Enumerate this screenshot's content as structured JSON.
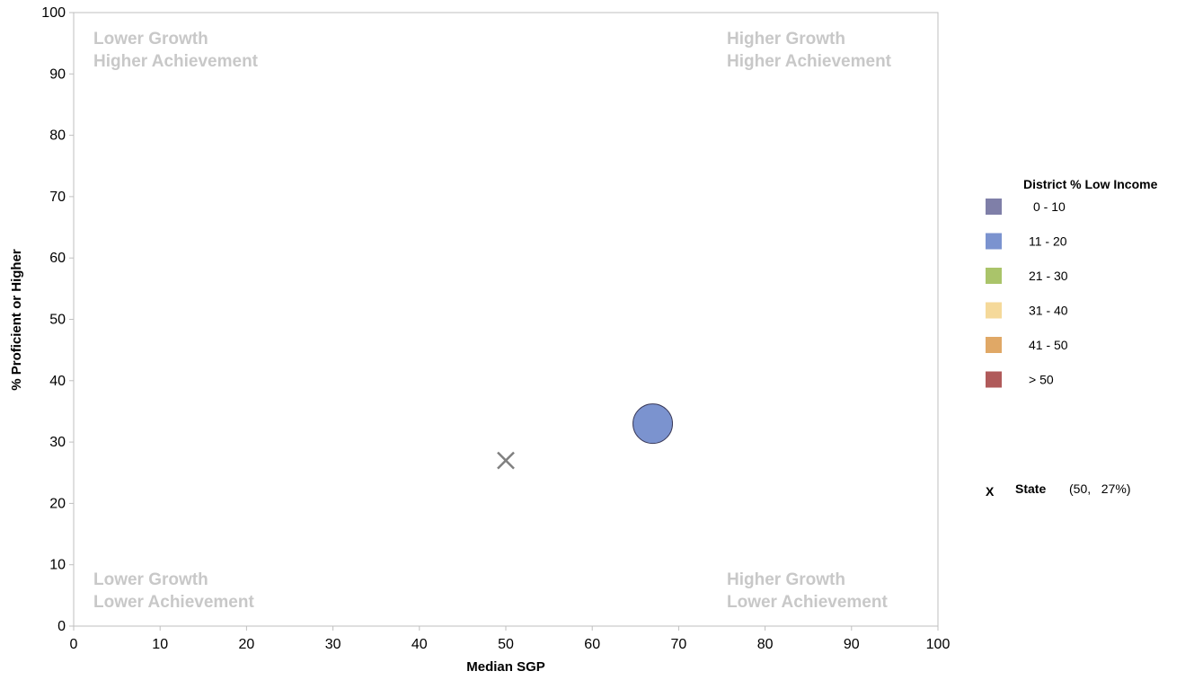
{
  "chart_data": {
    "type": "scatter",
    "title": "",
    "xlabel": "Median SGP",
    "ylabel": "% Proficient or Higher",
    "xlim": [
      0,
      100
    ],
    "ylim": [
      0,
      100
    ],
    "x_ticks": [
      "0",
      "10",
      "20",
      "30",
      "40",
      "50",
      "60",
      "70",
      "80",
      "90",
      "100"
    ],
    "y_ticks": [
      "0",
      "10",
      "20",
      "30",
      "40",
      "50",
      "60",
      "70",
      "80",
      "90",
      "100"
    ],
    "grid": false,
    "quadrant_labels": {
      "top_left": [
        "Lower Growth",
        "Higher Achievement"
      ],
      "top_right": [
        "Higher Growth",
        "Higher Achievement"
      ],
      "bottom_left": [
        "Lower Growth",
        "Lower Achievement"
      ],
      "bottom_right": [
        "Higher Growth",
        "Lower Achievement"
      ]
    },
    "legend": {
      "title": "District % Low Income",
      "placement": "right",
      "items": [
        {
          "label": "0 - 10",
          "color": "#7f7fa8"
        },
        {
          "label": "11 - 20",
          "color": "#7b93cf"
        },
        {
          "label": "21 - 30",
          "color": "#aac46a"
        },
        {
          "label": "31 - 40",
          "color": "#f5d99a"
        },
        {
          "label": "41 - 50",
          "color": "#e0a866"
        },
        {
          "label": "> 50",
          "color": "#b05a5a"
        }
      ]
    },
    "points": [
      {
        "x": 67,
        "y": 33,
        "category": "11 - 20",
        "color": "#7b93cf"
      }
    ],
    "state_marker": {
      "symbol": "X",
      "label": "State",
      "value_text": "(50,   27%)",
      "x": 50,
      "y": 27,
      "color": "#808080"
    }
  }
}
